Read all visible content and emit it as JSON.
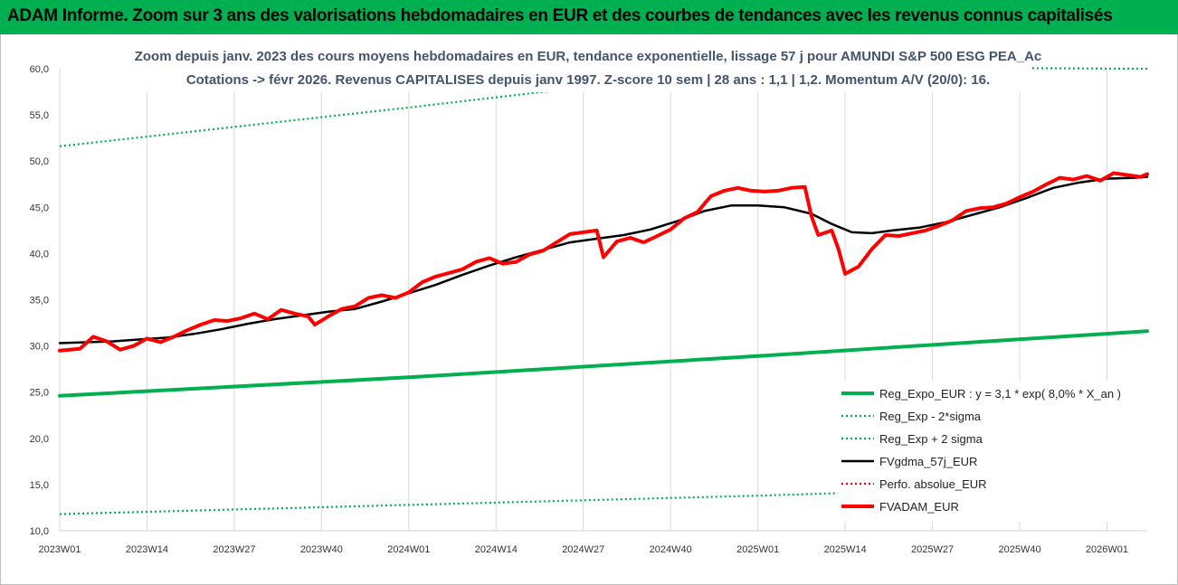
{
  "header": {
    "text": "ADAM Informe. Zoom sur 3 ans des valorisations hebdomadaires en EUR et des courbes de tendances avec les revenus connus capitalisés"
  },
  "chart_data": {
    "type": "line",
    "title": "Zoom depuis janv. 2023 des cours moyens hebdomadaires en EUR, tendance exponentielle, lissage 57 j pour AMUNDI S&P 500 ESG PEA_Ac",
    "subtitle": "Cotations -> févr 2026. Revenus CAPITALISES depuis janv 1997. Z-score 10 sem | 28 ans : 1,1 | 1,2. Momentum A/V (20/0): 16.",
    "xlabel": "",
    "ylabel": "",
    "ylim": [
      10,
      60
    ],
    "ytick_labels": [
      "10,0",
      "15,0",
      "20,0",
      "25,0",
      "30,0",
      "35,0",
      "40,0",
      "45,0",
      "50,0",
      "55,0",
      "60,0"
    ],
    "x_tick_labels": [
      "2023W01",
      "2023W14",
      "2023W27",
      "2023W40",
      "2024W01",
      "2024W14",
      "2024W27",
      "2024W40",
      "2025W01",
      "2025W14",
      "2025W27",
      "2025W40",
      "2026W01"
    ],
    "x_tick_index": [
      0,
      13,
      26,
      39,
      52,
      65,
      78,
      91,
      104,
      117,
      130,
      143,
      156
    ],
    "n_weeks": 163,
    "grid": "vertical",
    "legend_position": "bottom-right",
    "series": [
      {
        "name": "Reg_Expo_EUR : y = 3,1 * exp( 8,0% *  X_an )",
        "color": "#00b050",
        "style": "solid-thick",
        "points": [
          [
            0,
            24.6
          ],
          [
            52,
            26.6
          ],
          [
            104,
            28.9
          ],
          [
            162,
            31.6
          ]
        ]
      },
      {
        "name": "Reg_Exp - 2*sigma",
        "color": "#00b050",
        "style": "dotted",
        "points": [
          [
            0,
            11.8
          ],
          [
            52,
            12.8
          ],
          [
            104,
            13.8
          ],
          [
            162,
            15.1
          ]
        ]
      },
      {
        "name": "Reg_Exp + 2 sigma",
        "color": "#00b050",
        "style": "dotted",
        "points": [
          [
            0,
            51.6
          ],
          [
            52,
            55.8
          ],
          [
            104,
            60.2
          ],
          [
            162,
            60.0
          ]
        ]
      },
      {
        "name": "FVgdma_57j_EUR",
        "color": "#000000",
        "style": "solid",
        "points": [
          [
            0,
            30.3
          ],
          [
            4,
            30.4
          ],
          [
            8,
            30.5
          ],
          [
            12,
            30.7
          ],
          [
            16,
            30.9
          ],
          [
            20,
            31.3
          ],
          [
            24,
            31.8
          ],
          [
            28,
            32.4
          ],
          [
            32,
            32.9
          ],
          [
            36,
            33.3
          ],
          [
            40,
            33.7
          ],
          [
            44,
            34.0
          ],
          [
            48,
            34.8
          ],
          [
            52,
            35.7
          ],
          [
            56,
            36.6
          ],
          [
            60,
            37.7
          ],
          [
            64,
            38.7
          ],
          [
            68,
            39.6
          ],
          [
            72,
            40.4
          ],
          [
            76,
            41.2
          ],
          [
            80,
            41.6
          ],
          [
            84,
            42.0
          ],
          [
            88,
            42.6
          ],
          [
            92,
            43.5
          ],
          [
            96,
            44.6
          ],
          [
            100,
            45.2
          ],
          [
            104,
            45.2
          ],
          [
            108,
            45.0
          ],
          [
            112,
            44.3
          ],
          [
            115,
            43.2
          ],
          [
            118,
            42.3
          ],
          [
            121,
            42.2
          ],
          [
            124,
            42.5
          ],
          [
            128,
            42.8
          ],
          [
            132,
            43.4
          ],
          [
            136,
            44.2
          ],
          [
            140,
            45.0
          ],
          [
            144,
            46.0
          ],
          [
            148,
            47.1
          ],
          [
            152,
            47.7
          ],
          [
            156,
            48.1
          ],
          [
            160,
            48.2
          ],
          [
            162,
            48.3
          ]
        ]
      },
      {
        "name": "Perfo. absolue_EUR",
        "color": "#ff0000",
        "style": "dotted",
        "points": []
      },
      {
        "name": "FVADAM_EUR",
        "color": "#ff0000",
        "style": "solid-thick",
        "points": [
          [
            0,
            29.5
          ],
          [
            3,
            29.7
          ],
          [
            5,
            31.0
          ],
          [
            7,
            30.5
          ],
          [
            9,
            29.6
          ],
          [
            11,
            30.0
          ],
          [
            13,
            30.8
          ],
          [
            15,
            30.4
          ],
          [
            17,
            31.0
          ],
          [
            19,
            31.7
          ],
          [
            21,
            32.3
          ],
          [
            23,
            32.8
          ],
          [
            25,
            32.7
          ],
          [
            27,
            33.0
          ],
          [
            29,
            33.5
          ],
          [
            31,
            32.9
          ],
          [
            33,
            33.9
          ],
          [
            35,
            33.5
          ],
          [
            37,
            33.2
          ],
          [
            38,
            32.3
          ],
          [
            40,
            33.2
          ],
          [
            42,
            34.0
          ],
          [
            44,
            34.3
          ],
          [
            46,
            35.2
          ],
          [
            48,
            35.5
          ],
          [
            50,
            35.2
          ],
          [
            52,
            35.8
          ],
          [
            54,
            36.9
          ],
          [
            56,
            37.5
          ],
          [
            58,
            37.9
          ],
          [
            60,
            38.3
          ],
          [
            62,
            39.1
          ],
          [
            64,
            39.5
          ],
          [
            66,
            38.9
          ],
          [
            68,
            39.1
          ],
          [
            70,
            39.9
          ],
          [
            72,
            40.3
          ],
          [
            74,
            41.2
          ],
          [
            76,
            42.1
          ],
          [
            78,
            42.3
          ],
          [
            80,
            42.5
          ],
          [
            81,
            39.6
          ],
          [
            83,
            41.3
          ],
          [
            85,
            41.7
          ],
          [
            87,
            41.2
          ],
          [
            89,
            41.9
          ],
          [
            91,
            42.6
          ],
          [
            93,
            43.8
          ],
          [
            95,
            44.5
          ],
          [
            97,
            46.2
          ],
          [
            99,
            46.8
          ],
          [
            101,
            47.1
          ],
          [
            103,
            46.8
          ],
          [
            105,
            46.7
          ],
          [
            107,
            46.8
          ],
          [
            109,
            47.1
          ],
          [
            111,
            47.2
          ],
          [
            112,
            44.0
          ],
          [
            113,
            42.0
          ],
          [
            115,
            42.5
          ],
          [
            116,
            40.5
          ],
          [
            117,
            37.8
          ],
          [
            119,
            38.6
          ],
          [
            121,
            40.5
          ],
          [
            123,
            42.0
          ],
          [
            125,
            41.9
          ],
          [
            127,
            42.2
          ],
          [
            129,
            42.5
          ],
          [
            131,
            43.0
          ],
          [
            133,
            43.6
          ],
          [
            135,
            44.6
          ],
          [
            137,
            44.9
          ],
          [
            139,
            45.0
          ],
          [
            141,
            45.4
          ],
          [
            143,
            46.1
          ],
          [
            145,
            46.7
          ],
          [
            147,
            47.5
          ],
          [
            149,
            48.2
          ],
          [
            151,
            48.0
          ],
          [
            153,
            48.4
          ],
          [
            155,
            47.9
          ],
          [
            157,
            48.7
          ],
          [
            159,
            48.5
          ],
          [
            161,
            48.3
          ],
          [
            162,
            48.6
          ]
        ]
      }
    ]
  }
}
